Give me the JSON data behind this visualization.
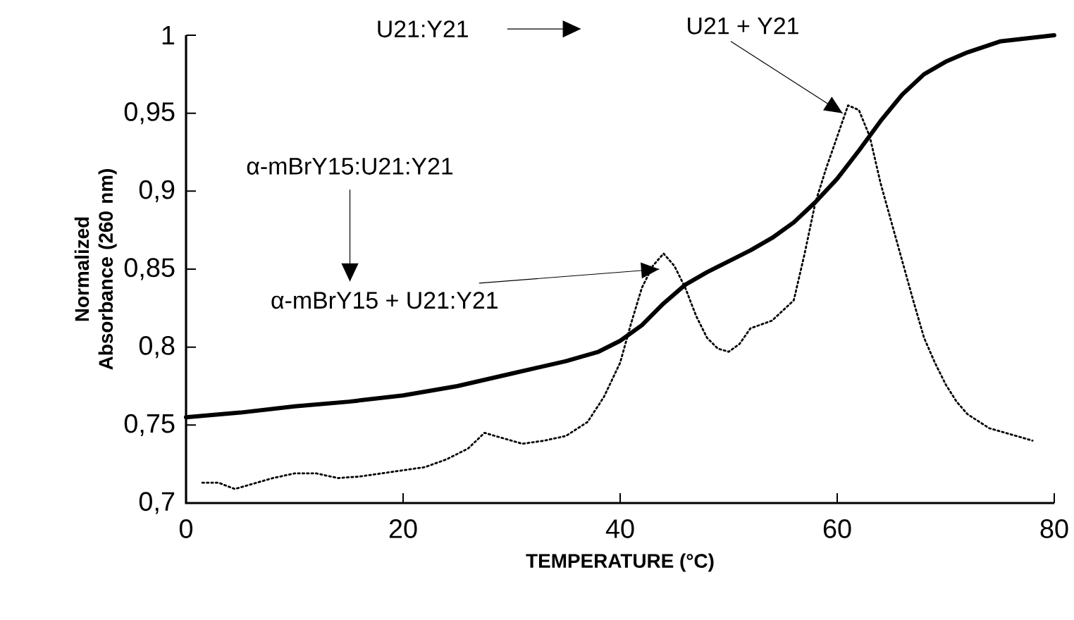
{
  "chart_data": {
    "type": "line",
    "xlabel": "TEMPERATURE (°C)",
    "ylabel": "Normalized Absorbance (260 nm)",
    "xlim": [
      0,
      80
    ],
    "ylim": [
      0.7,
      1
    ],
    "xticks": [
      0,
      20,
      40,
      60,
      80
    ],
    "yticks": [
      {
        "value": 0.7,
        "label": "0,7"
      },
      {
        "value": 0.75,
        "label": "0,75"
      },
      {
        "value": 0.8,
        "label": "0,8"
      },
      {
        "value": 0.85,
        "label": "0,85"
      },
      {
        "value": 0.9,
        "label": "0,9"
      },
      {
        "value": 0.95,
        "label": "0,95"
      },
      {
        "value": 1,
        "label": "1"
      }
    ],
    "marker": "none",
    "series": [
      {
        "color": "#000000",
        "line_style": "solid",
        "x": [
          0,
          5,
          10,
          15,
          20,
          25,
          30,
          35,
          38,
          40,
          42,
          44,
          46,
          48,
          50,
          52,
          54,
          56,
          58,
          60,
          62,
          64,
          66,
          68,
          70,
          72,
          75,
          80
        ],
        "values": [
          0.755,
          0.758,
          0.762,
          0.765,
          0.769,
          0.775,
          0.783,
          0.791,
          0.797,
          0.804,
          0.814,
          0.828,
          0.84,
          0.848,
          0.855,
          0.862,
          0.87,
          0.88,
          0.893,
          0.908,
          0.926,
          0.945,
          0.962,
          0.975,
          0.983,
          0.989,
          0.996,
          1.0
        ]
      },
      {
        "color": "#000000",
        "line_style": "dotted",
        "x": [
          1.5,
          3,
          4.5,
          6,
          8,
          10,
          12,
          14,
          16,
          18,
          20,
          22,
          24,
          26,
          27.5,
          29,
          31,
          33,
          35,
          37,
          38.5,
          40,
          41,
          42,
          43,
          44,
          45,
          46,
          47,
          48,
          49,
          50,
          51,
          52,
          54,
          56,
          57,
          58,
          59,
          60,
          61,
          62,
          63,
          64,
          65,
          66,
          67,
          68,
          69,
          70,
          71,
          72,
          74,
          76,
          78
        ],
        "values": [
          0.713,
          0.713,
          0.709,
          0.712,
          0.716,
          0.719,
          0.719,
          0.716,
          0.717,
          0.719,
          0.721,
          0.723,
          0.728,
          0.735,
          0.745,
          0.742,
          0.738,
          0.74,
          0.743,
          0.752,
          0.768,
          0.79,
          0.815,
          0.838,
          0.852,
          0.86,
          0.852,
          0.838,
          0.82,
          0.806,
          0.799,
          0.797,
          0.802,
          0.812,
          0.817,
          0.83,
          0.86,
          0.893,
          0.915,
          0.935,
          0.955,
          0.952,
          0.935,
          0.905,
          0.88,
          0.855,
          0.83,
          0.806,
          0.79,
          0.776,
          0.765,
          0.757,
          0.748,
          0.744,
          0.74
        ]
      }
    ],
    "annotations": [
      "U21:Y21",
      {
        "text": "U21 + Y21",
        "x": 60.5,
        "y": 0.95
      },
      "α-mBrY15:U21:Y21",
      {
        "text": "α-mBrY15 + U21:Y21",
        "x": 43.6,
        "y": 0.85
      }
    ]
  }
}
